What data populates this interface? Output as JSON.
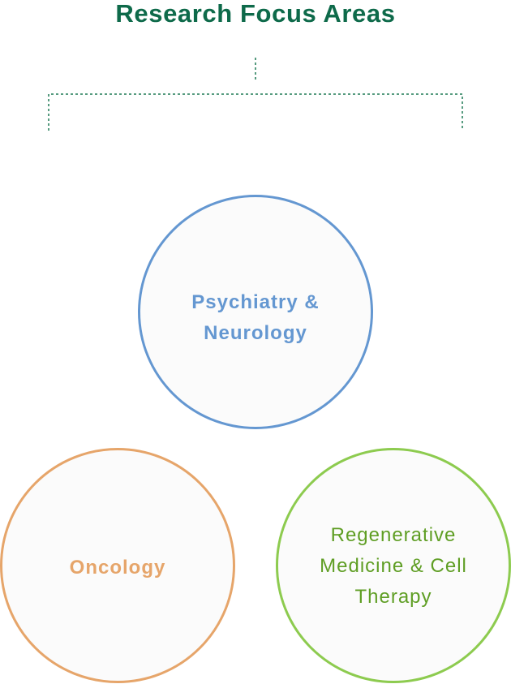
{
  "title": "Research Focus Areas",
  "colors": {
    "title": "#0e6a4a",
    "connector": "#1f7a55",
    "psychiatry": "#6497d1",
    "oncology": "#e6a56a",
    "regenerative_border": "#8dcb4f",
    "regenerative_text": "#5f9e24"
  },
  "areas": [
    {
      "label": "Psychiatry & Neurology"
    },
    {
      "label": "Oncology"
    },
    {
      "label": "Regenerative Medicine & Cell Therapy"
    }
  ]
}
